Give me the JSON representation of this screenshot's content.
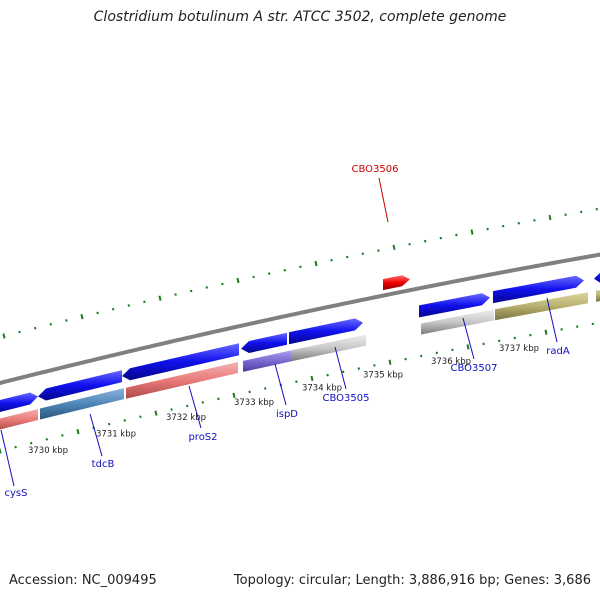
{
  "title": "Clostridium botulinum A str. ATCC 3502, complete genome",
  "footer": {
    "accession": "Accession: NC_009495",
    "stats": "Topology: circular; Length: 3,886,916 bp; Genes: 3,686"
  },
  "colors": {
    "backbone": "#808080",
    "tick": "#1f7a1f",
    "forward_arrow": "#1010ee",
    "label_blue": "#1010c0",
    "label_red": "#cc0000",
    "highlight_arrow": "#ee0000"
  },
  "scale_kbp": [
    3730,
    3731,
    3732,
    3733,
    3734,
    3735,
    3736,
    3737
  ],
  "scale_labels": [
    "3730 kbp",
    "3731 kbp",
    "3732 kbp",
    "3733 kbp",
    "3734 kbp",
    "3735 kbp",
    "3736 kbp",
    "3737 kbp"
  ],
  "genes": [
    {
      "name": "cysS",
      "label_color": "#1010c0",
      "bar_color": "#e87a7a"
    },
    {
      "name": "tdcB",
      "label_color": "#1010c0",
      "bar_color": "#4f86b8"
    },
    {
      "name": "proS2",
      "label_color": "#1010c0",
      "bar_color": "#e87a7a"
    },
    {
      "name": "ispD",
      "label_color": "#1010c0",
      "bar_color": "#7a6ad0"
    },
    {
      "name": "CBO3505",
      "label_color": "#1010c0",
      "bar_color": "#c8c8c8"
    },
    {
      "name": "CBO3506",
      "label_color": "#cc0000",
      "bar_color": "#ee0000"
    },
    {
      "name": "CBO3507",
      "label_color": "#1010c0",
      "bar_color": "#c8c8c8"
    },
    {
      "name": "radA",
      "label_color": "#1010c0",
      "bar_color": "#b8b070"
    }
  ]
}
